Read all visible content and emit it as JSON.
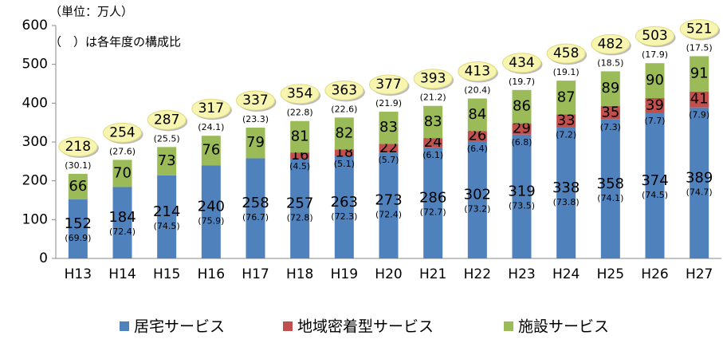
{
  "chart_data": {
    "type": "stacked_bar",
    "annotations": [
      "（単位：万人）",
      "（　）は各年度の構成比"
    ],
    "categories": [
      "H13",
      "H14",
      "H15",
      "H16",
      "H17",
      "H18",
      "H19",
      "H20",
      "H21",
      "H22",
      "H23",
      "H24",
      "H25",
      "H26",
      "H27"
    ],
    "series": [
      {
        "name": "居宅サービス",
        "color": "#4f81bd",
        "values": [
          152,
          184,
          214,
          240,
          258,
          257,
          263,
          273,
          286,
          302,
          319,
          338,
          358,
          374,
          389
        ],
        "share_labels": [
          "(69.9)",
          "(72.4)",
          "(74.5)",
          "(75.9)",
          "(76.7)",
          "(72.8)",
          "(72.3)",
          "(72.4)",
          "(72.7)",
          "(73.2)",
          "(73.5)",
          "(73.8)",
          "(74.1)",
          "(74.5)",
          "(74.7)"
        ]
      },
      {
        "name": "地域密着型サービス",
        "color": "#c0504d",
        "values": [
          null,
          null,
          null,
          null,
          null,
          16,
          18,
          22,
          24,
          26,
          29,
          33,
          35,
          39,
          41
        ],
        "share_labels": [
          null,
          null,
          null,
          null,
          null,
          "(4.5)",
          "(5.1)",
          "(5.7)",
          "(6.1)",
          "(6.4)",
          "(6.8)",
          "(7.2)",
          "(7.3)",
          "(7.7)",
          "(7.9)"
        ]
      },
      {
        "name": "施設サービス",
        "color": "#9bbb59",
        "values": [
          66,
          70,
          73,
          76,
          79,
          81,
          82,
          83,
          83,
          84,
          86,
          87,
          89,
          90,
          91
        ],
        "share_labels": [
          "(30.1)",
          "(27.6)",
          "(25.5)",
          "(24.1)",
          "(23.3)",
          "(22.8)",
          "(22.6)",
          "(21.9)",
          "(21.2)",
          "(20.4)",
          "(19.7)",
          "(19.1)",
          "(18.5)",
          "(17.9)",
          "(17.5)"
        ]
      }
    ],
    "totals": [
      218,
      254,
      287,
      317,
      337,
      354,
      363,
      377,
      393,
      413,
      434,
      458,
      482,
      503,
      521
    ],
    "ylim": [
      0,
      600
    ],
    "yticks": [
      0,
      100,
      200,
      300,
      400,
      500,
      600
    ],
    "grid": false,
    "legend": "bottom"
  }
}
